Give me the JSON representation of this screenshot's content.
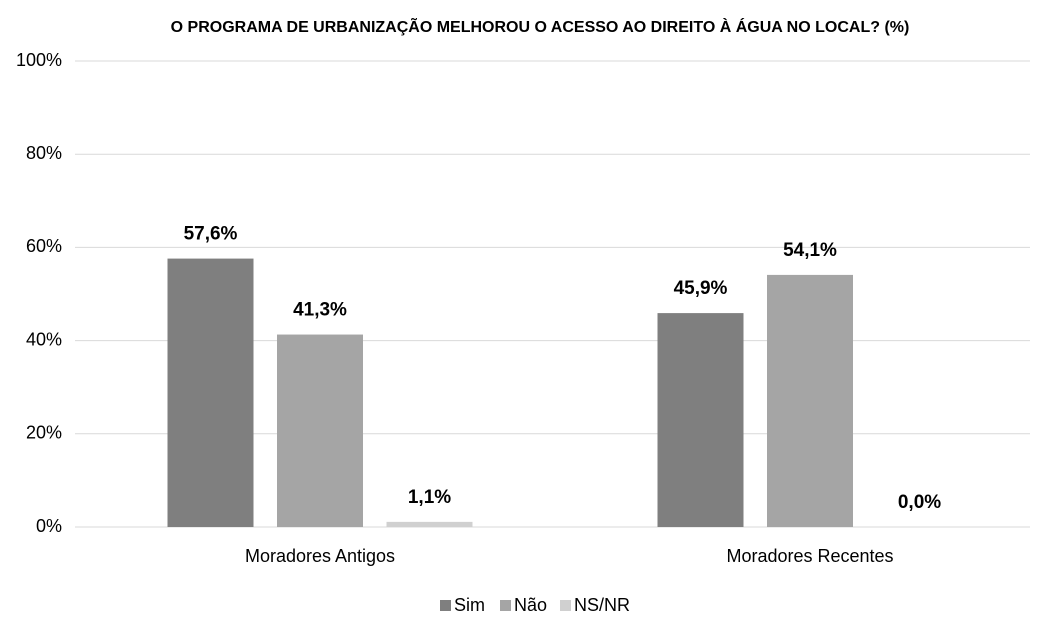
{
  "chart_data": {
    "type": "bar",
    "title": "O PROGRAMA DE URBANIZAÇÃO MELHOROU O ACESSO AO DIREITO À ÁGUA NO LOCAL? (%)",
    "categories": [
      "Moradores Antigos",
      "Moradores Recentes"
    ],
    "series": [
      {
        "name": "Sim",
        "color": "#7f7f7f",
        "values": [
          57.6,
          45.9
        ],
        "value_labels": [
          "57,6%",
          "45,9%"
        ]
      },
      {
        "name": "Não",
        "color": "#a5a5a5",
        "values": [
          41.3,
          54.1
        ],
        "value_labels": [
          "41,3%",
          "54,1%"
        ]
      },
      {
        "name": "NS/NR",
        "color": "#d0d0d0",
        "values": [
          1.1,
          0.0
        ],
        "value_labels": [
          "1,1%",
          "0,0%"
        ]
      }
    ],
    "ylim": [
      0,
      100
    ],
    "yticks": [
      {
        "value": 0,
        "label": "0%"
      },
      {
        "value": 20,
        "label": "20%"
      },
      {
        "value": 40,
        "label": "40%"
      },
      {
        "value": 60,
        "label": "60%"
      },
      {
        "value": 80,
        "label": "80%"
      },
      {
        "value": 100,
        "label": "100%"
      }
    ],
    "grid": true,
    "legend": "bottom"
  }
}
